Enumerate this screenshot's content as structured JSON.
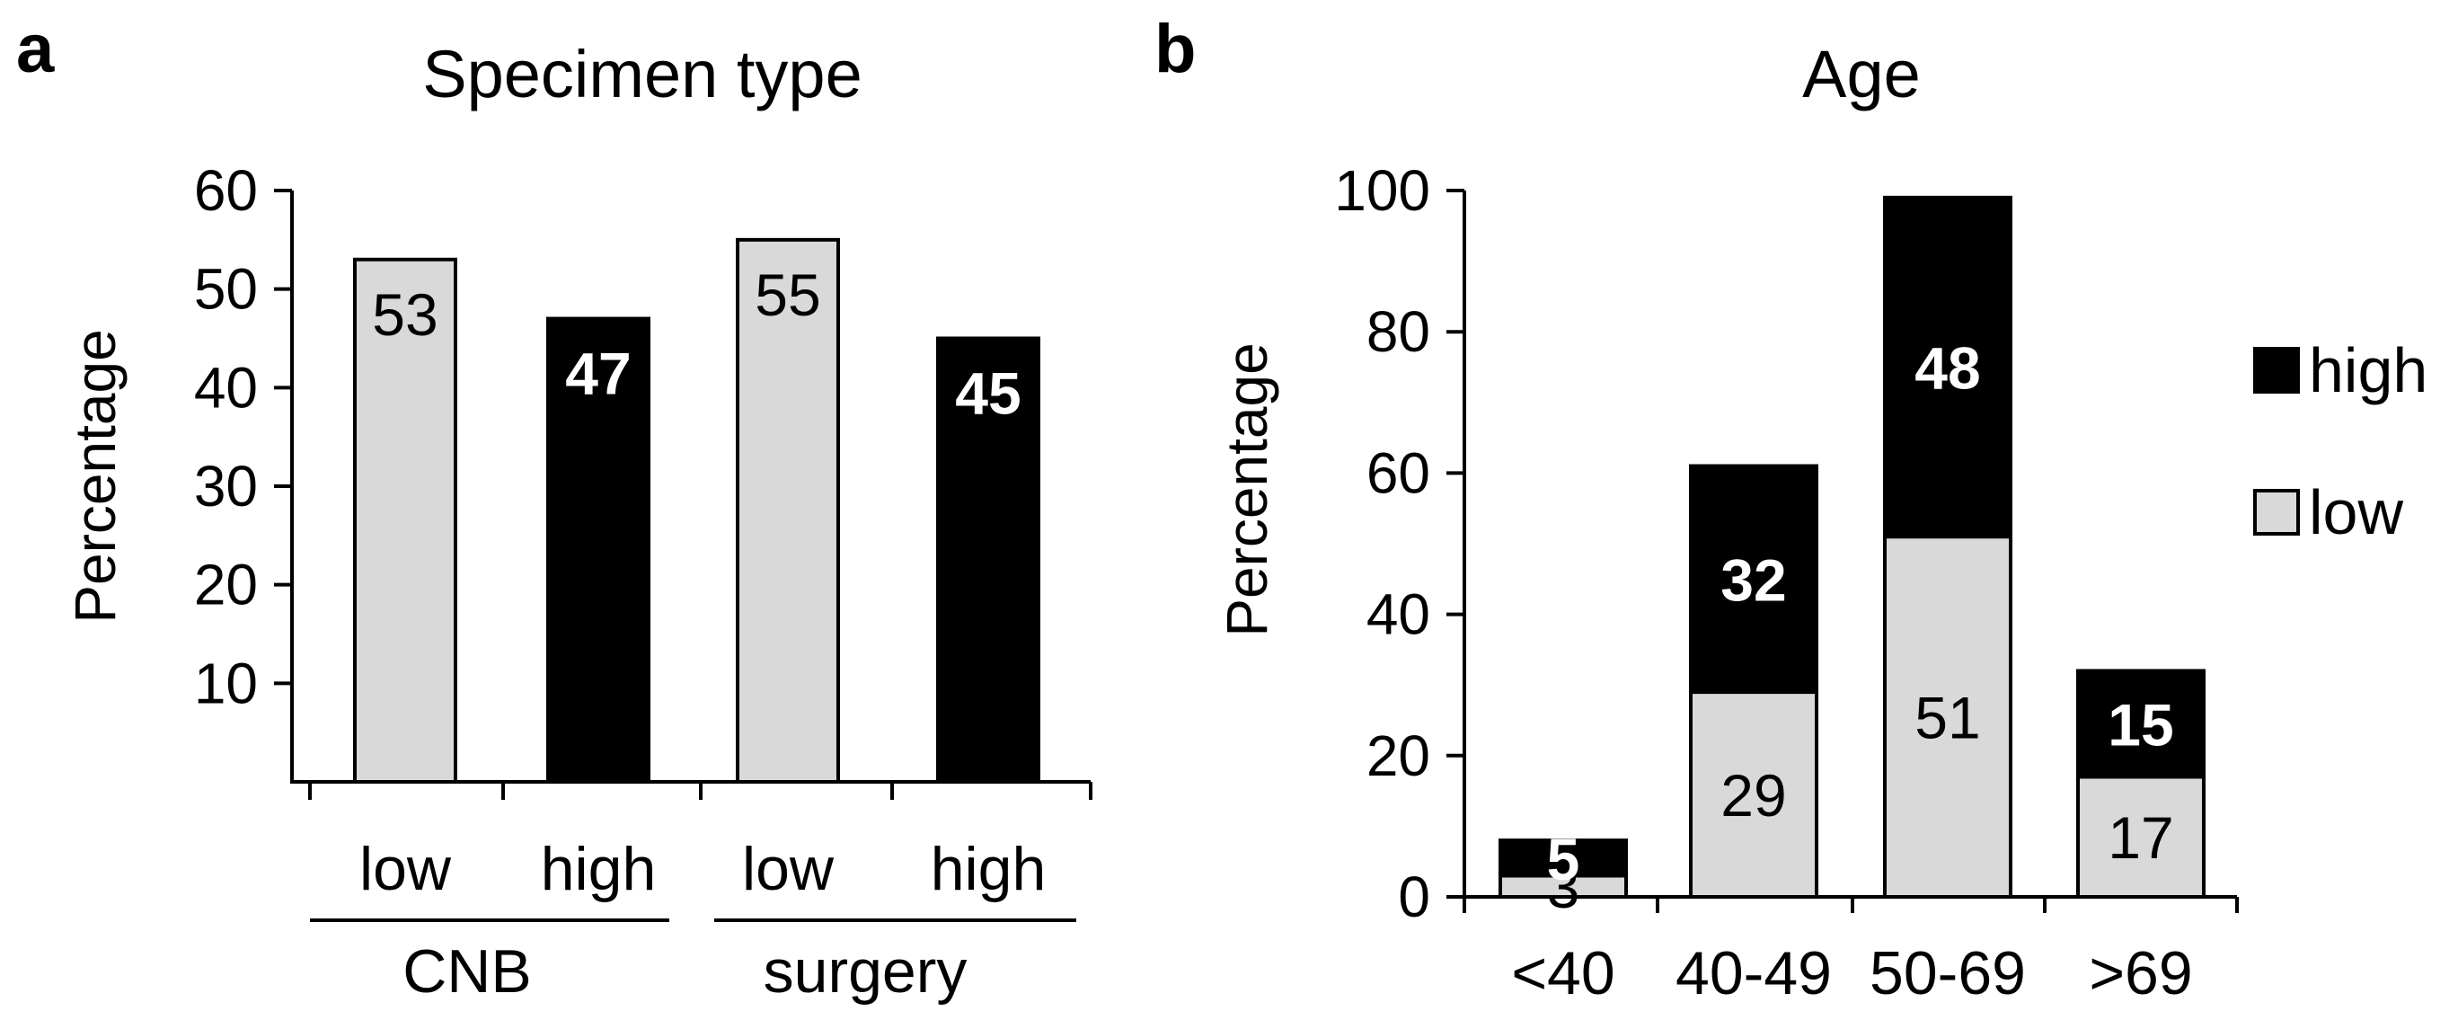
{
  "colors": {
    "low": "#d9d9d9",
    "high": "#000000",
    "axis": "#000000"
  },
  "chart_data": [
    {
      "panel": "a",
      "type": "bar",
      "title": "Specimen type",
      "ylabel": "Percentage",
      "ylim": [
        0,
        60
      ],
      "yticks": [
        "10",
        "20",
        "30",
        "40",
        "50",
        "60"
      ],
      "categories": [
        "low",
        "high",
        "low",
        "high"
      ],
      "groups": [
        "CNB",
        "surgery"
      ],
      "values": [
        53,
        47,
        55,
        45
      ],
      "value_labels": [
        "53",
        "47",
        "55",
        "45"
      ],
      "series_of_bar": [
        "low",
        "high",
        "low",
        "high"
      ]
    },
    {
      "panel": "b",
      "type": "bar",
      "stacked": true,
      "title": "Age",
      "ylabel": "Percentage",
      "ylim": [
        0,
        100
      ],
      "yticks": [
        "0",
        "20",
        "40",
        "60",
        "80",
        "100"
      ],
      "categories": [
        "<40",
        "40-49",
        "50-69",
        ">69"
      ],
      "series": [
        {
          "name": "low",
          "values": [
            3,
            29,
            51,
            17
          ],
          "labels": [
            "3",
            "29",
            "51",
            "17"
          ]
        },
        {
          "name": "high",
          "values": [
            5,
            32,
            48,
            15
          ],
          "labels": [
            "5",
            "32",
            "48",
            "15"
          ]
        }
      ],
      "legend": {
        "position": "right",
        "entries": [
          "high",
          "low"
        ]
      }
    }
  ]
}
